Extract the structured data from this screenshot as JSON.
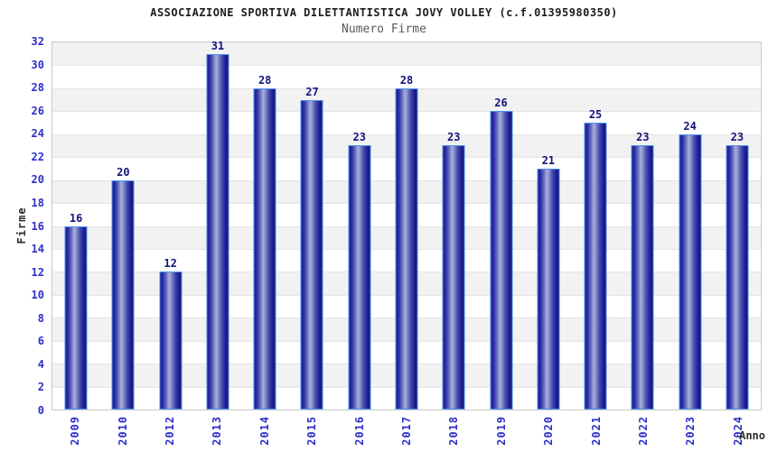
{
  "title": "ASSOCIAZIONE SPORTIVA DILETTANTISTICA JOVY VOLLEY (c.f.01395980350)",
  "subtitle": "Numero Firme",
  "colors": {
    "axis_tick_text": "#2e2ec8",
    "value_label_text": "#14147e",
    "bar_dark": "#1f1f96",
    "bar_light": "#a9b0dc",
    "bar_border": "#4a90e8",
    "band_gray": "#f2f2f2",
    "band_white": "#ffffff",
    "plot_border": "#c9c9c9",
    "title_text": "#1c1c1c",
    "subtitle_text": "#5a5a5a"
  },
  "chart_data": {
    "type": "bar",
    "title": "ASSOCIAZIONE SPORTIVA DILETTANTISTICA JOVY VOLLEY (c.f.01395980350)",
    "subtitle": "Numero Firme",
    "categories": [
      "2009",
      "2010",
      "2012",
      "2013",
      "2014",
      "2015",
      "2016",
      "2017",
      "2018",
      "2019",
      "2020",
      "2021",
      "2022",
      "2023",
      "2024"
    ],
    "values": [
      16,
      20,
      12,
      31,
      28,
      27,
      23,
      28,
      23,
      26,
      21,
      25,
      23,
      24,
      23
    ],
    "xlabel": "Anno",
    "ylabel": "Firme",
    "ylim": [
      0,
      32
    ],
    "ytick_step": 2,
    "grid": true,
    "background_bands": "alternating gray/white every 2 units, gray at 30-32",
    "legend": "none",
    "bar_labels": "value shown above each bar"
  }
}
